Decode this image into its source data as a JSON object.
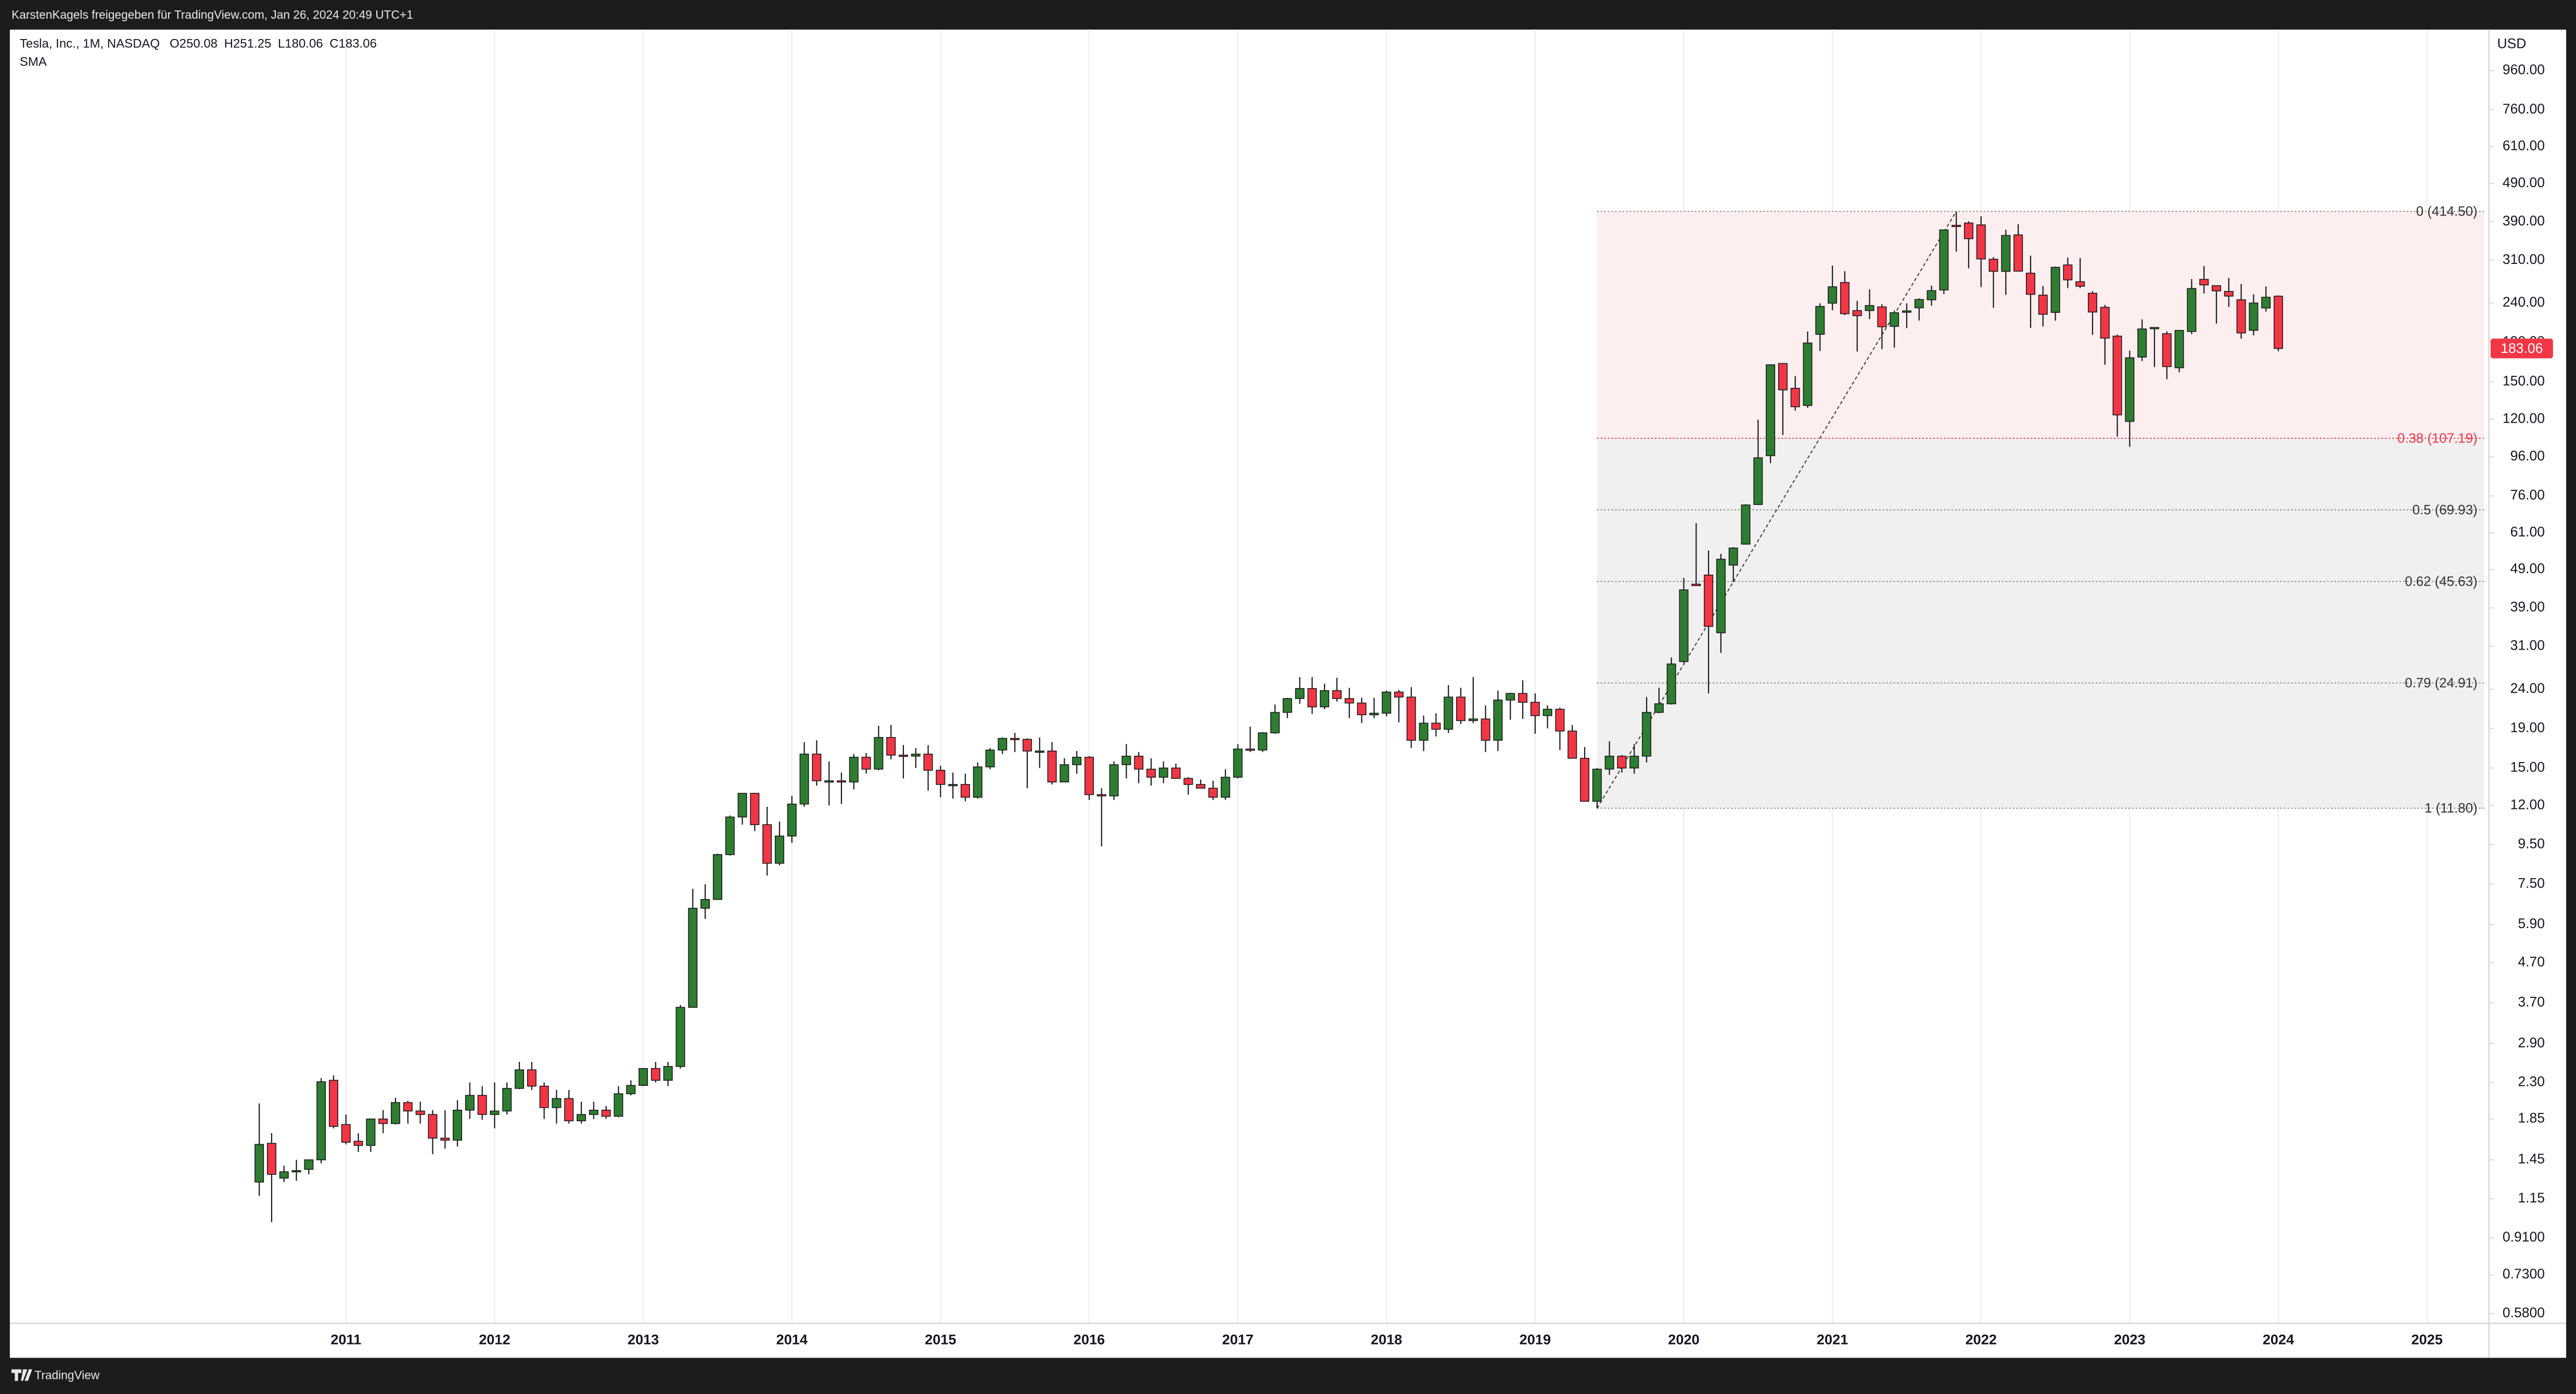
{
  "header": {
    "title": "KarstenKagels freigegeben für TradingView.com, Jan 26, 2024 20:49 UTC+1"
  },
  "footer": {
    "brand": "TradingView"
  },
  "chart_data": {
    "type": "candlestick",
    "legend": {
      "symbol": "Tesla, Inc., 1M, NASDAQ",
      "ohlc": [
        "O250.08",
        "H251.25",
        "L180.06",
        "C183.06"
      ],
      "indicator": "SMA"
    },
    "currency": "USD",
    "log_scale": true,
    "grid": "vertical",
    "up_color": "#2e7d32",
    "down_color": "#f23645",
    "price_tag_color": "#f23645",
    "xlim": [
      "2008-10",
      "2025-06"
    ],
    "xticks": [
      2011,
      2012,
      2013,
      2014,
      2015,
      2016,
      2017,
      2018,
      2019,
      2020,
      2021,
      2022,
      2023,
      2024,
      2025
    ],
    "ylim": [
      0.547,
      1226
    ],
    "yticks": [
      {
        "value": 960,
        "label": "960.00"
      },
      {
        "value": 760,
        "label": "760.00"
      },
      {
        "value": 610,
        "label": "610.00"
      },
      {
        "value": 490,
        "label": "490.00"
      },
      {
        "value": 390,
        "label": "390.00"
      },
      {
        "value": 310,
        "label": "310.00"
      },
      {
        "value": 240,
        "label": "240.00"
      },
      {
        "value": 190,
        "label": "190.00"
      },
      {
        "value": 150,
        "label": "150.00"
      },
      {
        "value": 120,
        "label": "120.00"
      },
      {
        "value": 96,
        "label": "96.00"
      },
      {
        "value": 76,
        "label": "76.00"
      },
      {
        "value": 61,
        "label": "61.00"
      },
      {
        "value": 49,
        "label": "49.00"
      },
      {
        "value": 39,
        "label": "39.00"
      },
      {
        "value": 31,
        "label": "31.00"
      },
      {
        "value": 24,
        "label": "24.00"
      },
      {
        "value": 19,
        "label": "19.00"
      },
      {
        "value": 15,
        "label": "15.00"
      },
      {
        "value": 12,
        "label": "12.00"
      },
      {
        "value": 9.5,
        "label": "9.50"
      },
      {
        "value": 7.5,
        "label": "7.50"
      },
      {
        "value": 5.9,
        "label": "5.90"
      },
      {
        "value": 4.7,
        "label": "4.70"
      },
      {
        "value": 3.7,
        "label": "3.70"
      },
      {
        "value": 2.9,
        "label": "2.90"
      },
      {
        "value": 2.3,
        "label": "2.30"
      },
      {
        "value": 1.85,
        "label": "1.85"
      },
      {
        "value": 1.45,
        "label": "1.45"
      },
      {
        "value": 1.15,
        "label": "1.15"
      },
      {
        "value": 0.91,
        "label": "0.9100"
      },
      {
        "value": 0.73,
        "label": "0.7300"
      },
      {
        "value": 0.58,
        "label": "0.5800"
      }
    ],
    "fib": {
      "from": "2019-06",
      "to": "2021-11",
      "line_color": "#888888",
      "levels": [
        {
          "ratio": 0,
          "price": 414.5,
          "label": "0 (414.50)",
          "color": "#333333",
          "band": "#fdeef0"
        },
        {
          "ratio": 0.38,
          "price": 107.19,
          "label": "0.38 (107.19)",
          "color": "#f23645",
          "band": "#f0f0f0"
        },
        {
          "ratio": 0.5,
          "price": 69.93,
          "label": "0.5 (69.93)",
          "color": "#333333",
          "band": "#f0f0f0"
        },
        {
          "ratio": 0.62,
          "price": 45.63,
          "label": "0.62 (45.63)",
          "color": "#333333",
          "band": "#f0f0f0"
        },
        {
          "ratio": 0.79,
          "price": 24.91,
          "label": "0.79 (24.91)",
          "color": "#333333",
          "band": "#f0f0f0"
        },
        {
          "ratio": 1,
          "price": 11.8,
          "label": "1 (11.80)",
          "color": "#333333"
        }
      ]
    },
    "x": [
      "2010-06",
      "2010-07",
      "2010-08",
      "2010-09",
      "2010-10",
      "2010-11",
      "2010-12",
      "2011-01",
      "2011-02",
      "2011-03",
      "2011-04",
      "2011-05",
      "2011-06",
      "2011-07",
      "2011-08",
      "2011-09",
      "2011-10",
      "2011-11",
      "2011-12",
      "2012-01",
      "2012-02",
      "2012-03",
      "2012-04",
      "2012-05",
      "2012-06",
      "2012-07",
      "2012-08",
      "2012-09",
      "2012-10",
      "2012-11",
      "2012-12",
      "2013-01",
      "2013-02",
      "2013-03",
      "2013-04",
      "2013-05",
      "2013-06",
      "2013-07",
      "2013-08",
      "2013-09",
      "2013-10",
      "2013-11",
      "2013-12",
      "2014-01",
      "2014-02",
      "2014-03",
      "2014-04",
      "2014-05",
      "2014-06",
      "2014-07",
      "2014-08",
      "2014-09",
      "2014-10",
      "2014-11",
      "2014-12",
      "2015-01",
      "2015-02",
      "2015-03",
      "2015-04",
      "2015-05",
      "2015-06",
      "2015-07",
      "2015-08",
      "2015-09",
      "2015-10",
      "2015-11",
      "2015-12",
      "2016-01",
      "2016-02",
      "2016-03",
      "2016-04",
      "2016-05",
      "2016-06",
      "2016-07",
      "2016-08",
      "2016-09",
      "2016-10",
      "2016-11",
      "2016-12",
      "2017-01",
      "2017-02",
      "2017-03",
      "2017-04",
      "2017-05",
      "2017-06",
      "2017-07",
      "2017-08",
      "2017-09",
      "2017-10",
      "2017-11",
      "2017-12",
      "2018-01",
      "2018-02",
      "2018-03",
      "2018-04",
      "2018-05",
      "2018-06",
      "2018-07",
      "2018-08",
      "2018-09",
      "2018-10",
      "2018-11",
      "2018-12",
      "2019-01",
      "2019-02",
      "2019-03",
      "2019-04",
      "2019-05",
      "2019-06",
      "2019-07",
      "2019-08",
      "2019-09",
      "2019-10",
      "2019-11",
      "2019-12",
      "2020-01",
      "2020-02",
      "2020-03",
      "2020-04",
      "2020-05",
      "2020-06",
      "2020-07",
      "2020-08",
      "2020-09",
      "2020-10",
      "2020-11",
      "2020-12",
      "2021-01",
      "2021-02",
      "2021-03",
      "2021-04",
      "2021-05",
      "2021-06",
      "2021-07",
      "2021-08",
      "2021-09",
      "2021-10",
      "2021-11",
      "2021-12",
      "2022-01",
      "2022-02",
      "2022-03",
      "2022-04",
      "2022-05",
      "2022-06",
      "2022-07",
      "2022-08",
      "2022-09",
      "2022-10",
      "2022-11",
      "2022-12",
      "2023-01",
      "2023-02",
      "2023-03",
      "2023-04",
      "2023-05",
      "2023-06",
      "2023-07",
      "2023-08",
      "2023-09",
      "2023-10",
      "2023-11",
      "2023-12",
      "2024-01"
    ],
    "open": [
      1.27,
      1.6,
      1.3,
      1.35,
      1.37,
      1.45,
      2.33,
      1.79,
      1.62,
      1.58,
      1.85,
      1.8,
      2.04,
      1.94,
      1.9,
      1.65,
      1.63,
      1.95,
      2.13,
      1.9,
      1.94,
      2.22,
      2.48,
      2.25,
      1.98,
      2.09,
      1.83,
      1.9,
      1.95,
      1.88,
      2.15,
      2.26,
      2.5,
      2.33,
      2.53,
      3.6,
      6.5,
      6.85,
      8.95,
      11.2,
      12.9,
      10.7,
      8.5,
      10.0,
      12.1,
      16.3,
      13.9,
      13.9,
      13.8,
      16.0,
      14.9,
      18.0,
      16.2,
      16.1,
      16.3,
      14.8,
      13.6,
      13.6,
      12.6,
      15.1,
      16.7,
      17.9,
      17.8,
      16.6,
      16.6,
      13.8,
      15.3,
      16.0,
      12.8,
      12.7,
      15.3,
      16.1,
      14.9,
      14.2,
      15.0,
      14.1,
      13.6,
      13.3,
      12.6,
      14.2,
      16.8,
      16.7,
      18.5,
      20.9,
      22.7,
      24.1,
      21.6,
      23.8,
      22.7,
      22.1,
      20.6,
      20.8,
      23.6,
      22.9,
      17.7,
      19.6,
      18.9,
      22.9,
      19.9,
      20.1,
      17.7,
      22.5,
      23.4,
      22.2,
      20.5,
      21.3,
      18.7,
      15.9,
      12.3,
      14.9,
      16.1,
      15.0,
      16.1,
      20.9,
      22.0,
      28.3,
      44.9,
      47.4,
      33.6,
      50.3,
      57.0,
      72.2,
      96.6,
      167.4,
      144.4,
      130.3,
      199.2,
      239.8,
      271.4,
      229.5,
      229.5,
      234.6,
      208.9,
      227.2,
      233.3,
      244.7,
      259.5,
      381.7,
      386.9,
      382.6,
      311.7,
      289.9,
      360.4,
      286.9,
      251.7,
      227.0,
      301.3,
      272.6,
      254.5,
      234.1,
      197.1,
      118.5,
      173.9,
      206.2,
      199.9,
      163.2,
      202.6,
      276.5,
      266.3,
      257.3,
      244.8,
      204.0,
      233.1,
      250.08
    ],
    "high": [
      2.03,
      1.7,
      1.4,
      1.45,
      1.45,
      2.36,
      2.4,
      1.9,
      1.7,
      1.85,
      1.95,
      2.1,
      2.06,
      2.05,
      1.95,
      1.95,
      2.07,
      2.3,
      2.25,
      2.3,
      2.3,
      2.6,
      2.6,
      2.3,
      2.2,
      2.2,
      2.05,
      2.05,
      2.0,
      2.25,
      2.33,
      2.5,
      2.6,
      2.6,
      3.65,
      7.3,
      7.5,
      9.0,
      11.3,
      12.9,
      12.9,
      11.9,
      10.9,
      12.7,
      17.5,
      17.7,
      15.6,
      14.6,
      16.3,
      16.4,
      19.3,
      19.4,
      17.2,
      16.9,
      17.2,
      15.2,
      14.6,
      14.5,
      15.5,
      16.9,
      18.0,
      18.5,
      17.9,
      18.0,
      17.5,
      15.9,
      16.6,
      16.1,
      13.3,
      15.6,
      17.3,
      16.5,
      15.9,
      15.6,
      15.4,
      14.2,
      14.0,
      13.9,
      14.9,
      17.3,
      19.2,
      18.6,
      21.9,
      22.8,
      25.8,
      25.8,
      24.8,
      25.7,
      24.2,
      22.8,
      22.8,
      23.8,
      23.9,
      24.3,
      20.5,
      20.8,
      24.6,
      24.2,
      25.8,
      21.8,
      23.8,
      23.5,
      25.3,
      23.4,
      21.8,
      21.5,
      19.4,
      17.0,
      15.0,
      17.6,
      16.2,
      17.3,
      22.9,
      24.2,
      29.0,
      46.6,
      64.6,
      54.9,
      53.8,
      56.0,
      72.3,
      119.7,
      166.7,
      167.5,
      155.3,
      202.6,
      239.6,
      300.1,
      290.3,
      243.3,
      260.3,
      238.4,
      229.5,
      239.6,
      246.8,
      266.3,
      371.7,
      414.5,
      390.9,
      402.7,
      315.6,
      371.6,
      384.3,
      318.5,
      265.9,
      298.3,
      314.7,
      313.8,
      257.5,
      237.4,
      198.9,
      180.7,
      217.7,
      207.8,
      202.7,
      204.5,
      276.9,
      299.3,
      266.5,
      278.9,
      268.9,
      252.8,
      265.1,
      251.25
    ],
    "low": [
      1.17,
      1.0,
      1.27,
      1.28,
      1.33,
      1.42,
      1.75,
      1.59,
      1.52,
      1.52,
      1.7,
      1.79,
      1.8,
      1.8,
      1.5,
      1.55,
      1.57,
      1.85,
      1.84,
      1.75,
      1.9,
      2.21,
      2.2,
      1.85,
      1.8,
      1.8,
      1.8,
      1.85,
      1.85,
      1.87,
      2.13,
      2.25,
      2.3,
      2.25,
      2.5,
      3.6,
      6.1,
      6.85,
      8.9,
      10.7,
      10.3,
      7.9,
      8.4,
      9.6,
      11.9,
      13.5,
      12.0,
      12.1,
      13.2,
      14.5,
      14.8,
      15.8,
      14.1,
      15.0,
      13.1,
      12.6,
      12.5,
      12.3,
      12.5,
      14.9,
      16.3,
      16.5,
      13.3,
      15.0,
      13.6,
      13.8,
      14.5,
      12.4,
      9.4,
      12.4,
      14.1,
      13.7,
      13.5,
      13.7,
      14.1,
      12.8,
      13.3,
      12.4,
      12.4,
      14.1,
      16.5,
      16.5,
      18.4,
      20.2,
      22.0,
      20.7,
      21.3,
      22.3,
      20.2,
      19.6,
      20.2,
      20.4,
      19.7,
      16.9,
      16.6,
      18.1,
      18.5,
      19.5,
      19.6,
      16.5,
      16.6,
      20.0,
      20.1,
      18.4,
      19.0,
      16.7,
      15.9,
      12.3,
      11.8,
      14.4,
      14.6,
      14.5,
      15.5,
      20.8,
      21.9,
      28.1,
      44.6,
      23.4,
      29.8,
      45.5,
      57.0,
      72.0,
      92.4,
      109.3,
      126.4,
      128.5,
      180.4,
      230.0,
      223.3,
      179.8,
      218.2,
      182.3,
      183.8,
      206.8,
      216.3,
      236.2,
      253.3,
      326.2,
      295.4,
      264.0,
      233.3,
      252.0,
      290.0,
      206.9,
      208.7,
      216.2,
      262.4,
      262.5,
      198.6,
      166.2,
      108.2,
      101.8,
      169.9,
      163.9,
      152.4,
      158.8,
      199.4,
      254.1,
      212.4,
      234.6,
      194.1,
      197.9,
      228.2,
      180.06
    ],
    "close": [
      1.59,
      1.33,
      1.35,
      1.36,
      1.45,
      2.31,
      1.77,
      1.61,
      1.58,
      1.85,
      1.8,
      2.04,
      1.94,
      1.9,
      1.65,
      1.63,
      1.95,
      2.13,
      1.9,
      1.94,
      2.22,
      2.48,
      2.25,
      1.98,
      2.09,
      1.83,
      1.9,
      1.95,
      1.88,
      2.15,
      2.26,
      2.5,
      2.33,
      2.53,
      3.6,
      6.5,
      6.85,
      8.95,
      11.2,
      12.9,
      10.7,
      8.5,
      10.0,
      12.1,
      16.3,
      13.9,
      13.9,
      13.8,
      16.0,
      14.9,
      18.0,
      16.2,
      16.1,
      16.3,
      14.8,
      13.6,
      13.6,
      12.6,
      15.1,
      16.7,
      17.9,
      17.8,
      16.6,
      16.6,
      13.8,
      15.3,
      16.0,
      12.8,
      12.7,
      15.3,
      16.1,
      14.9,
      14.2,
      15.0,
      14.1,
      13.6,
      13.3,
      12.6,
      14.2,
      16.8,
      16.7,
      18.5,
      20.9,
      22.7,
      24.1,
      21.6,
      23.8,
      22.7,
      22.1,
      20.6,
      20.8,
      23.6,
      22.9,
      17.7,
      19.6,
      18.9,
      22.9,
      19.9,
      20.1,
      17.7,
      22.5,
      23.4,
      22.2,
      20.5,
      21.3,
      18.7,
      15.9,
      12.3,
      14.9,
      16.1,
      15.0,
      16.1,
      20.9,
      22.0,
      27.9,
      43.4,
      44.5,
      34.9,
      52.1,
      55.7,
      72.0,
      95.4,
      166.1,
      143.0,
      129.3,
      189.2,
      235.2,
      264.5,
      225.2,
      222.6,
      236.5,
      208.4,
      226.6,
      229.1,
      245.2,
      258.5,
      371.3,
      381.6,
      352.3,
      312.2,
      290.1,
      359.2,
      290.3,
      252.8,
      224.5,
      297.1,
      275.6,
      265.3,
      227.5,
      194.7,
      123.2,
      173.2,
      205.7,
      207.5,
      164.3,
      203.9,
      261.8,
      267.4,
      258.1,
      250.2,
      200.8,
      240.1,
      248.5,
      183.06
    ]
  }
}
